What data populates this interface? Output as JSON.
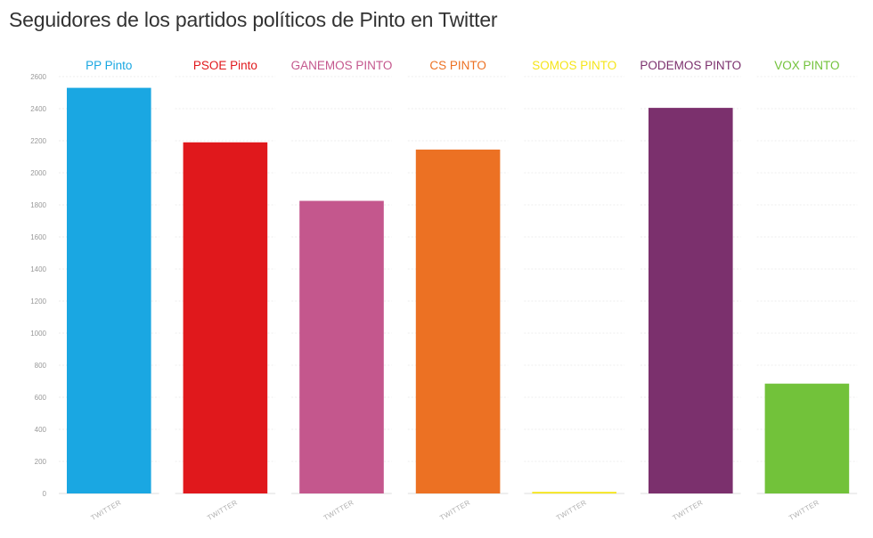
{
  "title": "Seguidores de los partidos políticos de Pinto en Twitter",
  "chart_data": {
    "type": "bar",
    "layout": "small-multiples",
    "title": "Seguidores de los partidos políticos de Pinto en Twitter",
    "ylim": [
      0,
      2600
    ],
    "yticks": [
      0,
      200,
      400,
      600,
      800,
      1000,
      1200,
      1400,
      1600,
      1800,
      2000,
      2200,
      2400,
      2600
    ],
    "grid": true,
    "categories": [
      "TWITTER"
    ],
    "series": [
      {
        "name": "PP Pinto",
        "values": [
          2530
        ],
        "color": "#1aa7e2"
      },
      {
        "name": "PSOE Pinto",
        "values": [
          2190
        ],
        "color": "#e0181c"
      },
      {
        "name": "GANEMOS PINTO",
        "values": [
          1825
        ],
        "color": "#c4578d"
      },
      {
        "name": "CS PINTO",
        "values": [
          2145
        ],
        "color": "#ec7123"
      },
      {
        "name": "SOMOS PINTO",
        "values": [
          10
        ],
        "color": "#f5e51a"
      },
      {
        "name": "PODEMOS PINTO",
        "values": [
          2405
        ],
        "color": "#7b306d"
      },
      {
        "name": "VOX PINTO",
        "values": [
          685
        ],
        "color": "#72c23a"
      }
    ]
  }
}
